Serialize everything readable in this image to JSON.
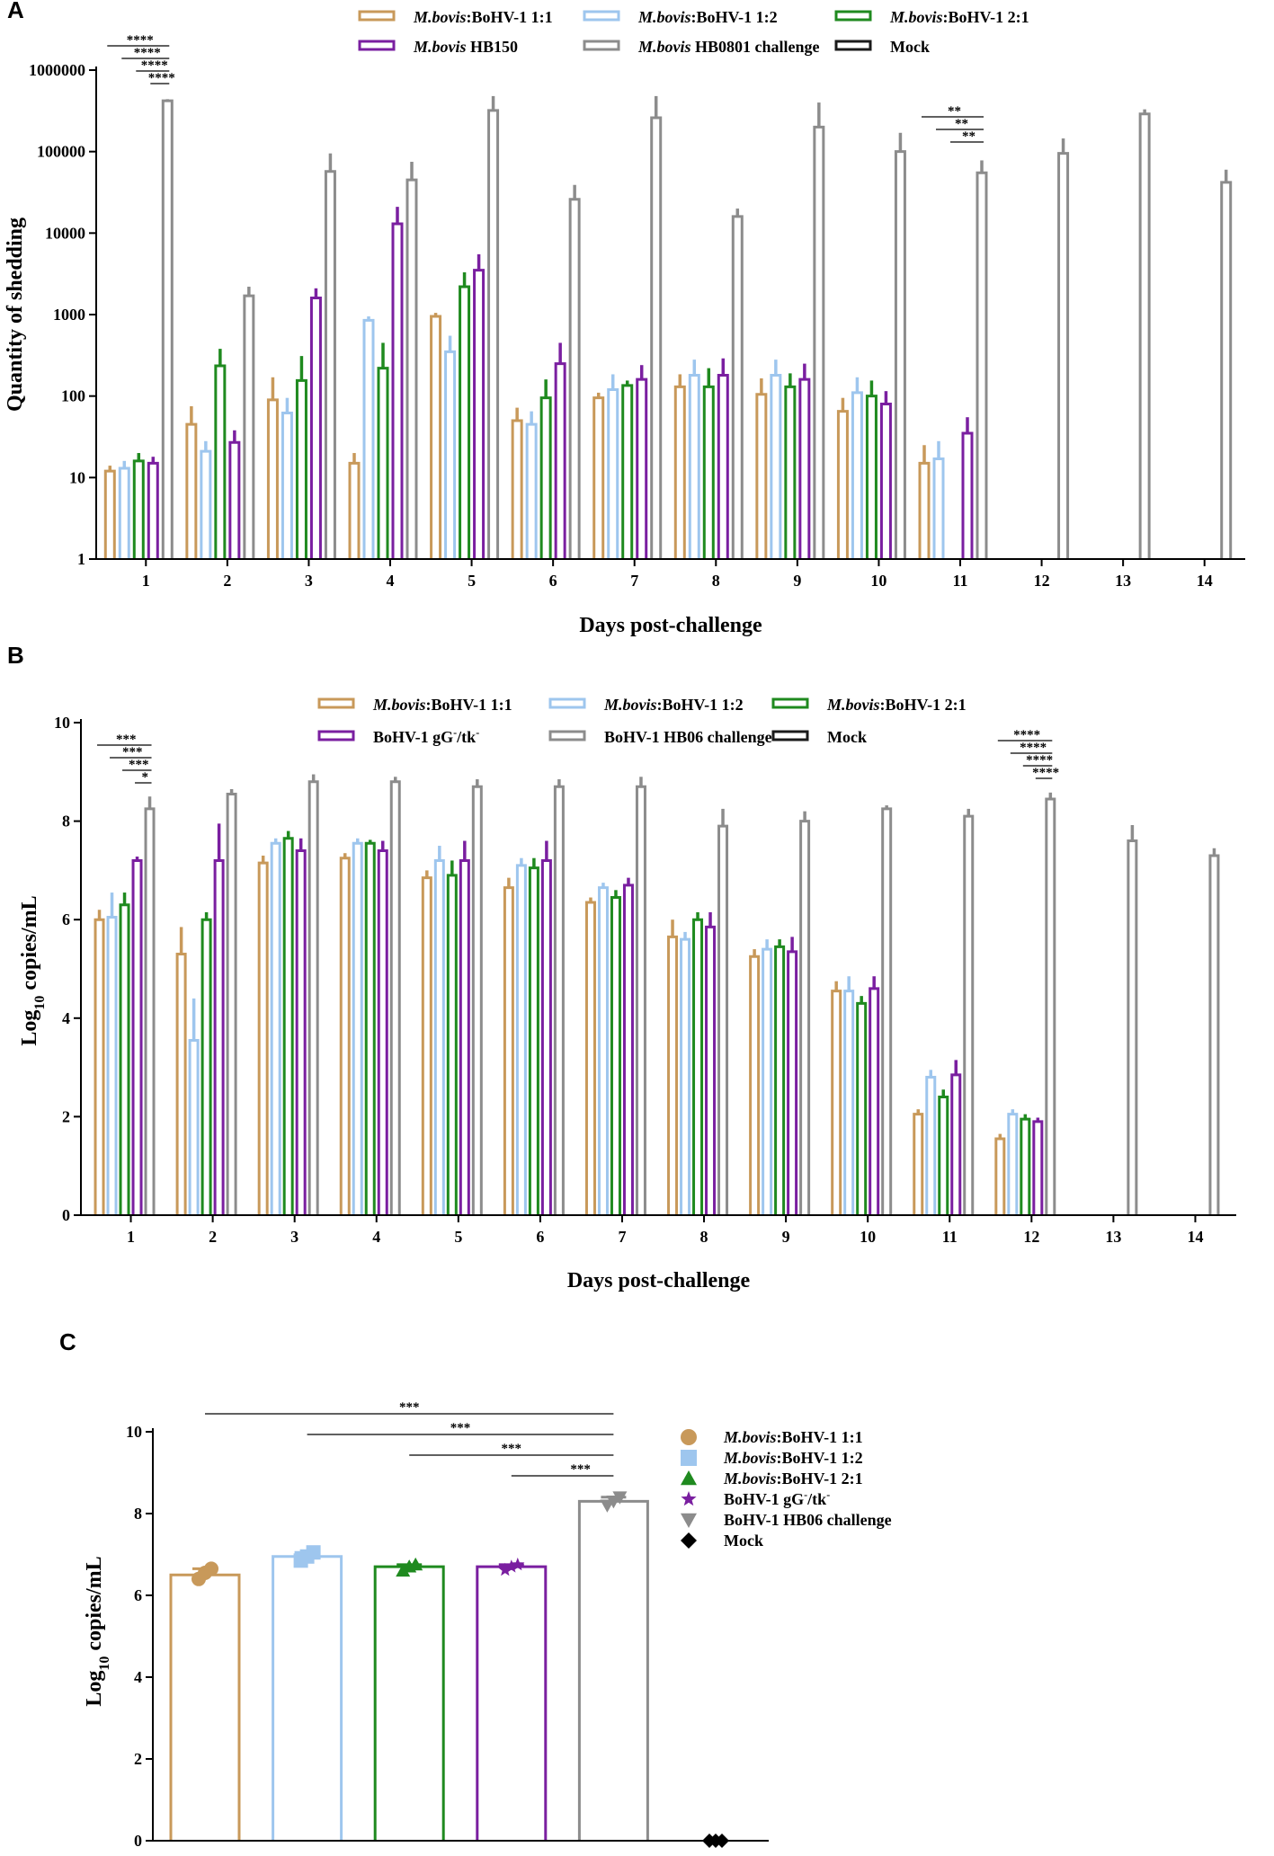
{
  "chart_data": [
    {
      "panel": "A",
      "type": "bar",
      "scale": "log",
      "ylabel": "Quantity of shedding",
      "xlabel": "Days post-challenge",
      "ylim": [
        1,
        1000000
      ],
      "yticks": [
        "1",
        "10",
        "100",
        "1000",
        "10000",
        "100000",
        "1000000"
      ],
      "categories": [
        "1",
        "2",
        "3",
        "4",
        "5",
        "6",
        "7",
        "8",
        "9",
        "10",
        "11",
        "12",
        "13",
        "14"
      ],
      "legend": [
        {
          "italic": "M.bovis",
          "rest": ":BoHV-1 1:1",
          "color": "#c8995a"
        },
        {
          "italic": "M.bovis",
          "rest": ":BoHV-1 1:2",
          "color": "#9ec6ee"
        },
        {
          "italic": "M.bovis",
          "rest": ":BoHV-1 2:1",
          "color": "#1f8a1f"
        },
        {
          "italic": "M.bovis",
          "rest": " HB150",
          "color": "#7a1fa0"
        },
        {
          "italic": "M.bovis",
          "rest": " HB0801 challenge",
          "color": "#8c8c8c"
        },
        {
          "italic": "",
          "rest": "Mock",
          "color": "#1a1a1a"
        }
      ],
      "series": [
        {
          "name": "M.bovis:BoHV-1 1:1",
          "values": [
            12,
            45,
            90,
            15,
            950,
            50,
            95,
            130,
            105,
            65,
            15,
            null,
            null,
            null
          ],
          "errors": [
            14,
            75,
            170,
            20,
            1050,
            72,
            110,
            185,
            165,
            95,
            25,
            null,
            null,
            null
          ]
        },
        {
          "name": "M.bovis:BoHV-1 1:2",
          "values": [
            13,
            21,
            62,
            850,
            350,
            45,
            120,
            180,
            180,
            110,
            17,
            null,
            null,
            null
          ],
          "errors": [
            16,
            28,
            95,
            950,
            550,
            65,
            185,
            280,
            280,
            170,
            28,
            null,
            null,
            null
          ]
        },
        {
          "name": "M.bovis:BoHV-1 2:1",
          "values": [
            16,
            235,
            155,
            220,
            2200,
            95,
            135,
            130,
            130,
            100,
            null,
            null,
            null,
            null
          ],
          "errors": [
            20,
            380,
            310,
            450,
            3300,
            160,
            155,
            220,
            190,
            155,
            null,
            null,
            null,
            null
          ]
        },
        {
          "name": "M.bovis HB150",
          "values": [
            15,
            27,
            1600,
            13000,
            3500,
            250,
            160,
            180,
            160,
            80,
            35,
            null,
            null,
            null
          ],
          "errors": [
            18,
            38,
            2100,
            21000,
            5500,
            450,
            240,
            290,
            250,
            115,
            55,
            null,
            null,
            null
          ]
        },
        {
          "name": "M.bovis HB0801 challenge",
          "values": [
            420000,
            1700,
            57000,
            45000,
            320000,
            26000,
            260000,
            16000,
            200000,
            100000,
            55000,
            95000,
            290000,
            42000
          ],
          "errors": [
            440000,
            2200,
            95000,
            75000,
            480000,
            39000,
            480000,
            20000,
            400000,
            170000,
            78000,
            145000,
            330000,
            60000
          ]
        },
        {
          "name": "Mock",
          "values": [
            null,
            null,
            null,
            null,
            null,
            null,
            null,
            null,
            null,
            null,
            null,
            null,
            null,
            null
          ],
          "errors": [
            null,
            null,
            null,
            null,
            null,
            null,
            null,
            null,
            null,
            null,
            null,
            null,
            null,
            null
          ]
        }
      ],
      "significance": [
        {
          "day": "1",
          "stars": [
            "****",
            "****",
            "****",
            "****"
          ]
        },
        {
          "day": "11",
          "stars": [
            "**",
            "**",
            "**"
          ]
        }
      ]
    },
    {
      "panel": "B",
      "type": "bar",
      "scale": "linear",
      "ylabel": "Log10 copies/mL",
      "xlabel": "Days post-challenge",
      "ylim": [
        0,
        10
      ],
      "yticks": [
        "0",
        "2",
        "4",
        "6",
        "8",
        "10"
      ],
      "categories": [
        "1",
        "2",
        "3",
        "4",
        "5",
        "6",
        "7",
        "8",
        "9",
        "10",
        "11",
        "12",
        "13",
        "14"
      ],
      "legend": [
        {
          "italic": "M.bovis",
          "rest": ":BoHV-1 1:1",
          "color": "#c8995a"
        },
        {
          "italic": "M.bovis",
          "rest": ":BoHV-1 1:2",
          "color": "#9ec6ee"
        },
        {
          "italic": "M.bovis",
          "rest": ":BoHV-1 2:1",
          "color": "#1f8a1f"
        },
        {
          "italic": "",
          "rest": "BoHV-1 gG-/tk-",
          "color": "#7a1fa0"
        },
        {
          "italic": "",
          "rest": "BoHV-1 HB06 challenge",
          "color": "#8c8c8c"
        },
        {
          "italic": "",
          "rest": "Mock",
          "color": "#1a1a1a"
        }
      ],
      "series": [
        {
          "name": "M.bovis:BoHV-1 1:1",
          "values": [
            6.0,
            5.3,
            7.15,
            7.25,
            6.85,
            6.65,
            6.35,
            5.65,
            5.25,
            4.55,
            2.05,
            1.55,
            null,
            null
          ],
          "errors": [
            6.2,
            5.85,
            7.3,
            7.35,
            7.0,
            6.85,
            6.45,
            6.0,
            5.4,
            4.75,
            2.15,
            1.65,
            null,
            null
          ]
        },
        {
          "name": "M.bovis:BoHV-1 1:2",
          "values": [
            6.05,
            3.55,
            7.55,
            7.55,
            7.2,
            7.1,
            6.65,
            5.6,
            5.4,
            4.55,
            2.8,
            2.05,
            null,
            null
          ],
          "errors": [
            6.55,
            4.4,
            7.65,
            7.65,
            7.5,
            7.25,
            6.75,
            5.75,
            5.6,
            4.85,
            2.95,
            2.15,
            null,
            null
          ]
        },
        {
          "name": "M.bovis:BoHV-1 2:1",
          "values": [
            6.3,
            6.0,
            7.65,
            7.55,
            6.9,
            7.05,
            6.45,
            6.0,
            5.45,
            4.3,
            2.4,
            1.95,
            null,
            null
          ],
          "errors": [
            6.55,
            6.15,
            7.8,
            7.62,
            7.2,
            7.25,
            6.6,
            6.15,
            5.6,
            4.45,
            2.55,
            2.05,
            null,
            null
          ]
        },
        {
          "name": "BoHV-1 gG-/tk-",
          "values": [
            7.2,
            7.2,
            7.4,
            7.4,
            7.2,
            7.2,
            6.7,
            5.85,
            5.35,
            4.6,
            2.85,
            1.9,
            null,
            null
          ],
          "errors": [
            7.28,
            7.95,
            7.65,
            7.6,
            7.6,
            7.6,
            6.85,
            6.15,
            5.65,
            4.85,
            3.15,
            1.98,
            null,
            null
          ]
        },
        {
          "name": "BoHV-1 HB06 challenge",
          "values": [
            8.25,
            8.55,
            8.8,
            8.8,
            8.7,
            8.7,
            8.7,
            7.9,
            8.0,
            8.25,
            8.1,
            8.45,
            7.6,
            7.3
          ],
          "errors": [
            8.5,
            8.65,
            8.95,
            8.9,
            8.85,
            8.85,
            8.9,
            8.25,
            8.2,
            8.32,
            8.25,
            8.58,
            7.92,
            7.45
          ]
        },
        {
          "name": "Mock",
          "values": [
            null,
            null,
            null,
            null,
            null,
            null,
            null,
            null,
            null,
            null,
            null,
            null,
            null,
            null
          ],
          "errors": [
            null,
            null,
            null,
            null,
            null,
            null,
            null,
            null,
            null,
            null,
            null,
            null,
            null,
            null
          ]
        }
      ],
      "significance": [
        {
          "day": "1",
          "stars": [
            "***",
            "***",
            "***",
            "*"
          ]
        },
        {
          "day": "12",
          "stars": [
            "****",
            "****",
            "****",
            "****"
          ]
        }
      ]
    },
    {
      "panel": "C",
      "type": "bar",
      "scale": "linear",
      "ylabel": "Log10 copies/mL",
      "xlabel": "",
      "ylim": [
        0,
        10
      ],
      "yticks": [
        "0",
        "2",
        "4",
        "6",
        "8",
        "10"
      ],
      "categories": [
        "M.bovis:BoHV-1 1:1",
        "M.bovis:BoHV-1 1:2",
        "M.bovis:BoHV-1 2:1",
        "BoHV-1 gG-/tk-",
        "BoHV-1 HB06 challenge",
        "Mock"
      ],
      "values": [
        6.5,
        6.95,
        6.7,
        6.7,
        8.3,
        0
      ],
      "points": [
        [
          6.4,
          6.55,
          6.65
        ],
        [
          6.85,
          6.95,
          7.05
        ],
        [
          6.6,
          6.7,
          6.75
        ],
        [
          6.62,
          6.7,
          6.75
        ],
        [
          8.2,
          8.3,
          8.4
        ],
        [
          0,
          0,
          0
        ]
      ],
      "markers": [
        "circle",
        "square",
        "triangle-up",
        "star",
        "triangle-down",
        "diamond"
      ],
      "colors": [
        "#c8995a",
        "#9ec6ee",
        "#1f8a1f",
        "#7a1fa0",
        "#8c8c8c",
        "#000000"
      ],
      "legend": [
        {
          "italic": "M.bovis",
          "rest": ":BoHV-1 1:1"
        },
        {
          "italic": "M.bovis",
          "rest": ":BoHV-1 1:2"
        },
        {
          "italic": "M.bovis",
          "rest": ":BoHV-1 2:1"
        },
        {
          "italic": "",
          "rest": "BoHV-1 gG-/tk-"
        },
        {
          "italic": "",
          "rest": "BoHV-1 HB06 challenge"
        },
        {
          "italic": "",
          "rest": "Mock"
        }
      ],
      "significance": [
        {
          "from": 0,
          "to": 4,
          "stars": "***"
        },
        {
          "from": 1,
          "to": 4,
          "stars": "***"
        },
        {
          "from": 2,
          "to": 4,
          "stars": "***"
        },
        {
          "from": 3,
          "to": 4,
          "stars": "***"
        }
      ]
    }
  ],
  "labels": {
    "panel_a": "A",
    "panel_b": "B",
    "panel_c": "C",
    "log10_prefix": "Log",
    "log10_sub": "10",
    "log10_suffix": " copies/mL",
    "superscript_minus": "-"
  }
}
